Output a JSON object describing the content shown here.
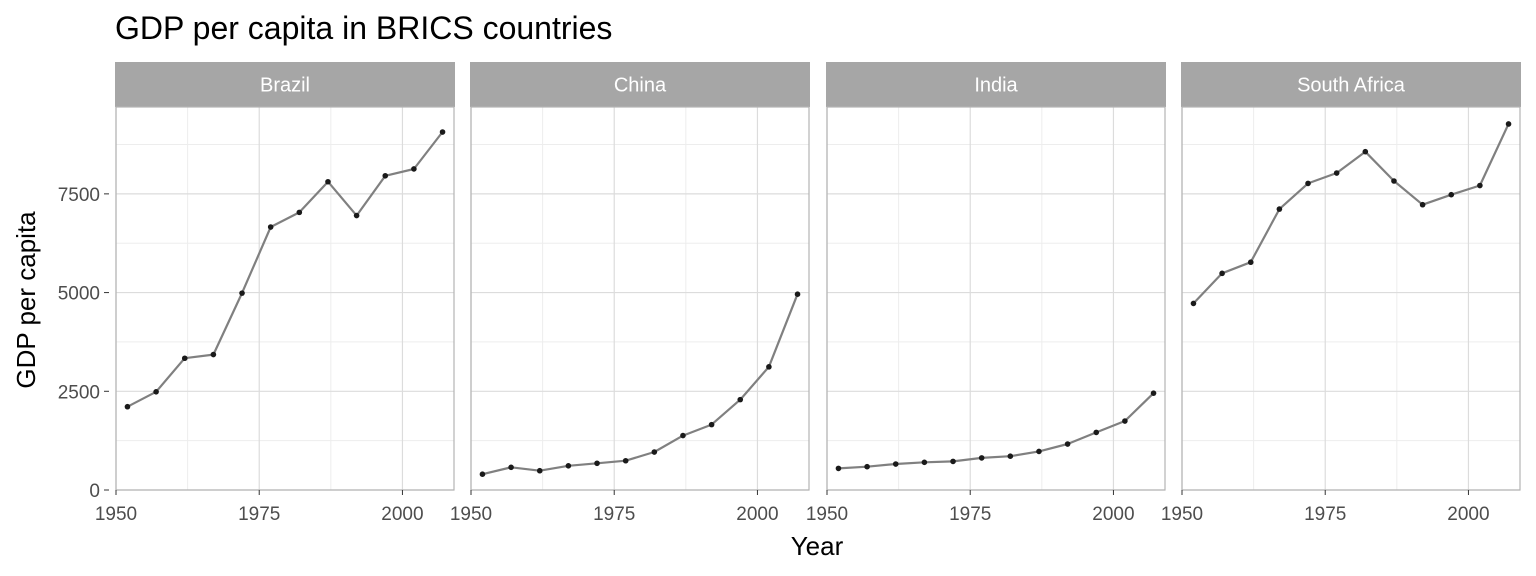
{
  "chart_data": {
    "type": "line",
    "title": "GDP per capita in BRICS countries",
    "xlabel": "Year",
    "ylabel": "GDP per capita",
    "xlim": [
      1950,
      2009
    ],
    "ylim": [
      0,
      9700
    ],
    "x_ticks": [
      1950,
      1975,
      2000
    ],
    "y_ticks": [
      0,
      2500,
      5000,
      7500
    ],
    "grid": true,
    "line_color": "#808080",
    "point_color": "#1a1a1a",
    "strip_color": "#a6a6a6",
    "x": [
      1952,
      1957,
      1962,
      1967,
      1972,
      1977,
      1982,
      1987,
      1992,
      1997,
      2002,
      2007
    ],
    "panels": [
      {
        "name": "Brazil",
        "values": [
          2109,
          2487,
          3337,
          3430,
          4986,
          6660,
          7031,
          7807,
          6950,
          7958,
          8131,
          9066
        ]
      },
      {
        "name": "China",
        "values": [
          400,
          575,
          488,
          613,
          677,
          741,
          962,
          1379,
          1656,
          2289,
          3119,
          4959
        ]
      },
      {
        "name": "India",
        "values": [
          547,
          590,
          658,
          701,
          724,
          813,
          856,
          977,
          1164,
          1459,
          1747,
          2452
        ]
      },
      {
        "name": "South Africa",
        "values": [
          4725,
          5487,
          5769,
          7114,
          7765,
          8028,
          8568,
          7826,
          7225,
          7479,
          7711,
          9270
        ]
      }
    ]
  }
}
